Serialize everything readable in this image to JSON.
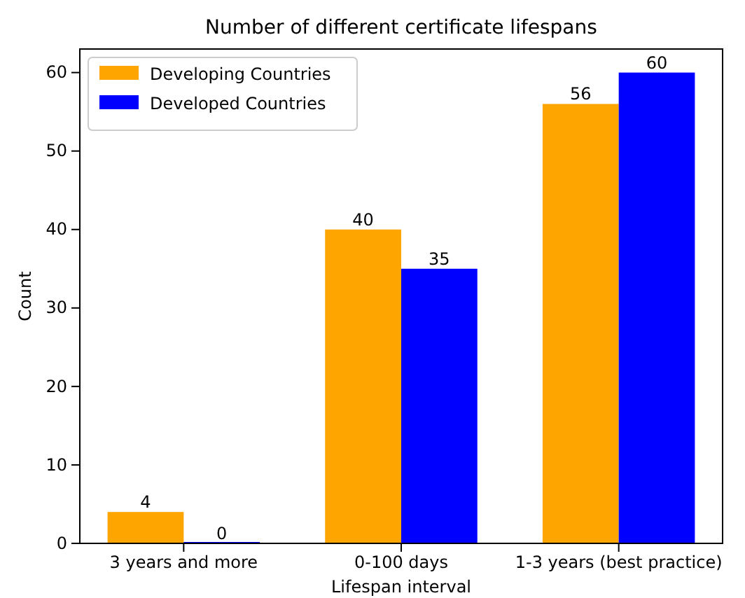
{
  "chart_data": {
    "type": "bar",
    "title": "Number of different certificate lifespans",
    "xlabel": "Lifespan interval",
    "ylabel": "Count",
    "categories": [
      "3 years and more",
      "0-100 days",
      "1-3 years (best practice)"
    ],
    "series": [
      {
        "name": "Developing Countries",
        "color": "#ffa500",
        "values": [
          4,
          40,
          56
        ]
      },
      {
        "name": "Developed Countries",
        "color": "#0000ff",
        "values": [
          0,
          35,
          60
        ]
      }
    ],
    "ylim": [
      0,
      63
    ],
    "yticks": [
      0,
      10,
      20,
      30,
      40,
      50,
      60
    ],
    "data_labels": true,
    "legend": "top left",
    "grid": false
  }
}
